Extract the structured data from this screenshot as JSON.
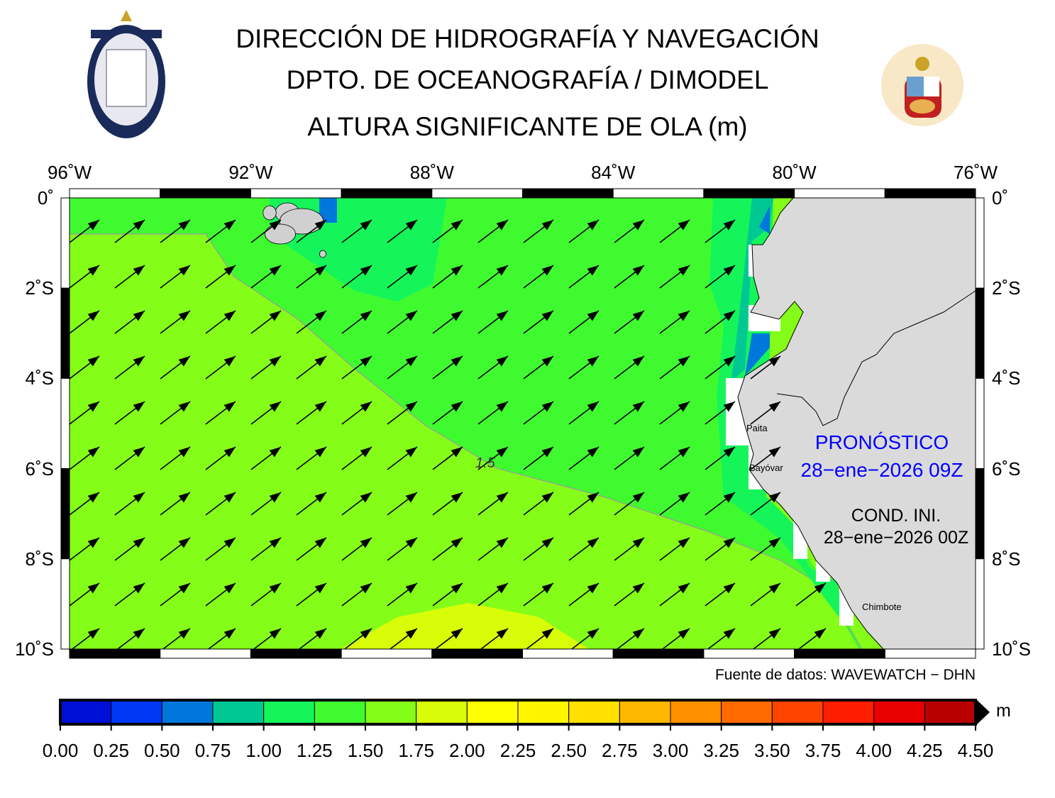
{
  "header": {
    "line1": "DIRECCIÓN DE HIDROGRAFÍA Y NAVEGACIÓN",
    "line2": "DPTO. DE OCEANOGRAFÍA / DIMODEL",
    "line3": "ALTURA SIGNIFICANTE DE OLA (m)",
    "left_logo": "DIRECCIÓN DE HIDROGRAFÍA Y NAVEGACIÓN - MARINA DE GUERRA DEL PERÚ",
    "right_logo": "MARINA DE GUERRA DEL PERÚ"
  },
  "map": {
    "lon_labels": [
      "96˚W",
      "92˚W",
      "88˚W",
      "84˚W",
      "80˚W",
      "76˚W"
    ],
    "lat_labels_left": [
      "0˚",
      "2˚S",
      "4˚S",
      "6˚S",
      "8˚S",
      "10˚S"
    ],
    "lat_labels_right": [
      "0˚",
      "2˚S",
      "4˚S",
      "6˚S",
      "8˚S",
      "10˚S"
    ],
    "contour_label": "1.5",
    "places": [
      "Paita",
      "Bayóvar",
      "Chimbote"
    ],
    "forecast_label": "PRONÓSTICO",
    "forecast_time": "28−ene−2026 09Z",
    "init_label": "COND. INI.",
    "init_time": "28−ene−2026 00Z",
    "source": "Fuente de datos: WAVEWATCH − DHN",
    "land_color": "#dadada",
    "forecast_color": "#0000ff"
  },
  "colorbar": {
    "unit": "m",
    "ticks": [
      "0.00",
      "0.25",
      "0.50",
      "0.75",
      "1.00",
      "1.25",
      "1.50",
      "1.75",
      "2.00",
      "2.25",
      "2.50",
      "2.75",
      "3.00",
      "3.25",
      "3.50",
      "3.75",
      "4.00",
      "4.25",
      "4.50"
    ],
    "colors": [
      "#000fd6",
      "#0037f5",
      "#0078db",
      "#00c893",
      "#15f55a",
      "#40fa30",
      "#84fd18",
      "#d8fd08",
      "#ffff00",
      "#fff500",
      "#ffe000",
      "#ffb800",
      "#ff9000",
      "#ff6a00",
      "#ff4400",
      "#ff1e00",
      "#e80000",
      "#b80000"
    ]
  }
}
